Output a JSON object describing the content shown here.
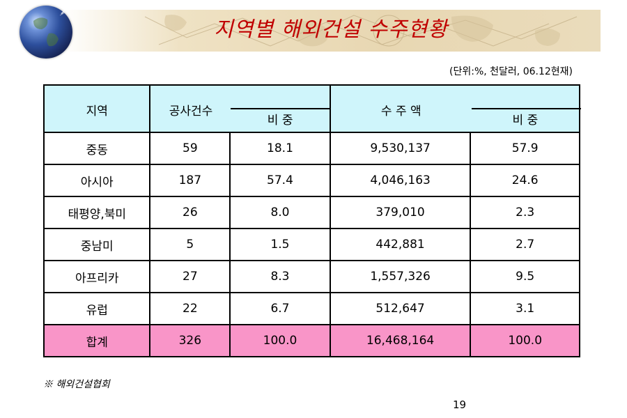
{
  "title": "지역별 해외건설 수주현황",
  "unit_note": "(단위:%, 천달러, 06.12현재)",
  "table": {
    "header": {
      "region": "지역",
      "count": "공사건수",
      "count_share": "비 중",
      "amount": "수 주 액",
      "amount_share": "비 중"
    },
    "rows": [
      {
        "region": "중동",
        "count": "59",
        "count_share": "18.1",
        "amount": "9,530,137",
        "amount_share": "57.9"
      },
      {
        "region": "아시아",
        "count": "187",
        "count_share": "57.4",
        "amount": "4,046,163",
        "amount_share": "24.6"
      },
      {
        "region": "태평양,북미",
        "count": "26",
        "count_share": "8.0",
        "amount": "379,010",
        "amount_share": "2.3"
      },
      {
        "region": "중남미",
        "count": "5",
        "count_share": "1.5",
        "amount": "442,881",
        "amount_share": "2.7"
      },
      {
        "region": "아프리카",
        "count": "27",
        "count_share": "8.3",
        "amount": "1,557,326",
        "amount_share": "9.5"
      },
      {
        "region": "유럽",
        "count": "22",
        "count_share": "6.7",
        "amount": "512,647",
        "amount_share": "3.1"
      }
    ],
    "total": {
      "region": "합계",
      "count": "326",
      "count_share": "100.0",
      "amount": "16,468,164",
      "amount_share": "100.0"
    }
  },
  "source_note": "※ 해외건설협회",
  "page_number": "19",
  "colors": {
    "title": "#c00000",
    "header_bg": "#cff5fb",
    "total_bg": "#f995c8",
    "banner_bg": "#e8d7b2"
  },
  "icons": {
    "logo": "globe-icon"
  }
}
